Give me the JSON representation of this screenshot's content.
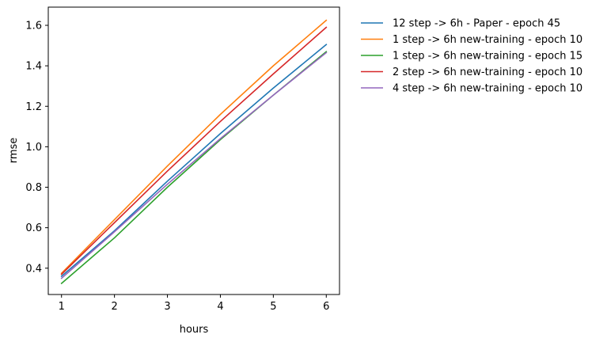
{
  "chart_data": {
    "type": "line",
    "title": "",
    "xlabel": "hours",
    "ylabel": "rmse",
    "x": [
      1,
      2,
      3,
      4,
      5,
      6
    ],
    "xlim": [
      0.75,
      6.25
    ],
    "ylim": [
      0.27,
      1.69
    ],
    "xticks": [
      1,
      2,
      3,
      4,
      5,
      6
    ],
    "yticks": [
      0.4,
      0.6,
      0.8,
      1.0,
      1.2,
      1.4,
      1.6
    ],
    "ytick_labels": [
      "0.4",
      "0.6",
      "0.8",
      "1.0",
      "1.2",
      "1.4",
      "1.6"
    ],
    "grid": false,
    "legend_position": "outside-right",
    "series": [
      {
        "name": "12 step -> 6h - Paper - epoch 45",
        "color": "#1f77b4",
        "values": [
          0.36,
          0.585,
          0.83,
          1.065,
          1.29,
          1.505
        ]
      },
      {
        "name": "1 step -> 6h new-training - epoch 10",
        "color": "#ff7f0e",
        "values": [
          0.375,
          0.64,
          0.905,
          1.16,
          1.4,
          1.625
        ]
      },
      {
        "name": "1 step -> 6h new-training - epoch 15",
        "color": "#2ca02c",
        "values": [
          0.325,
          0.55,
          0.8,
          1.035,
          1.255,
          1.47
        ]
      },
      {
        "name": "2 step -> 6h new-training - epoch 10",
        "color": "#d62728",
        "values": [
          0.37,
          0.625,
          0.88,
          1.125,
          1.36,
          1.59
        ]
      },
      {
        "name": "4 step -> 6h new-training - epoch 10",
        "color": "#9467bd",
        "values": [
          0.35,
          0.58,
          0.815,
          1.04,
          1.255,
          1.465
        ]
      }
    ]
  }
}
